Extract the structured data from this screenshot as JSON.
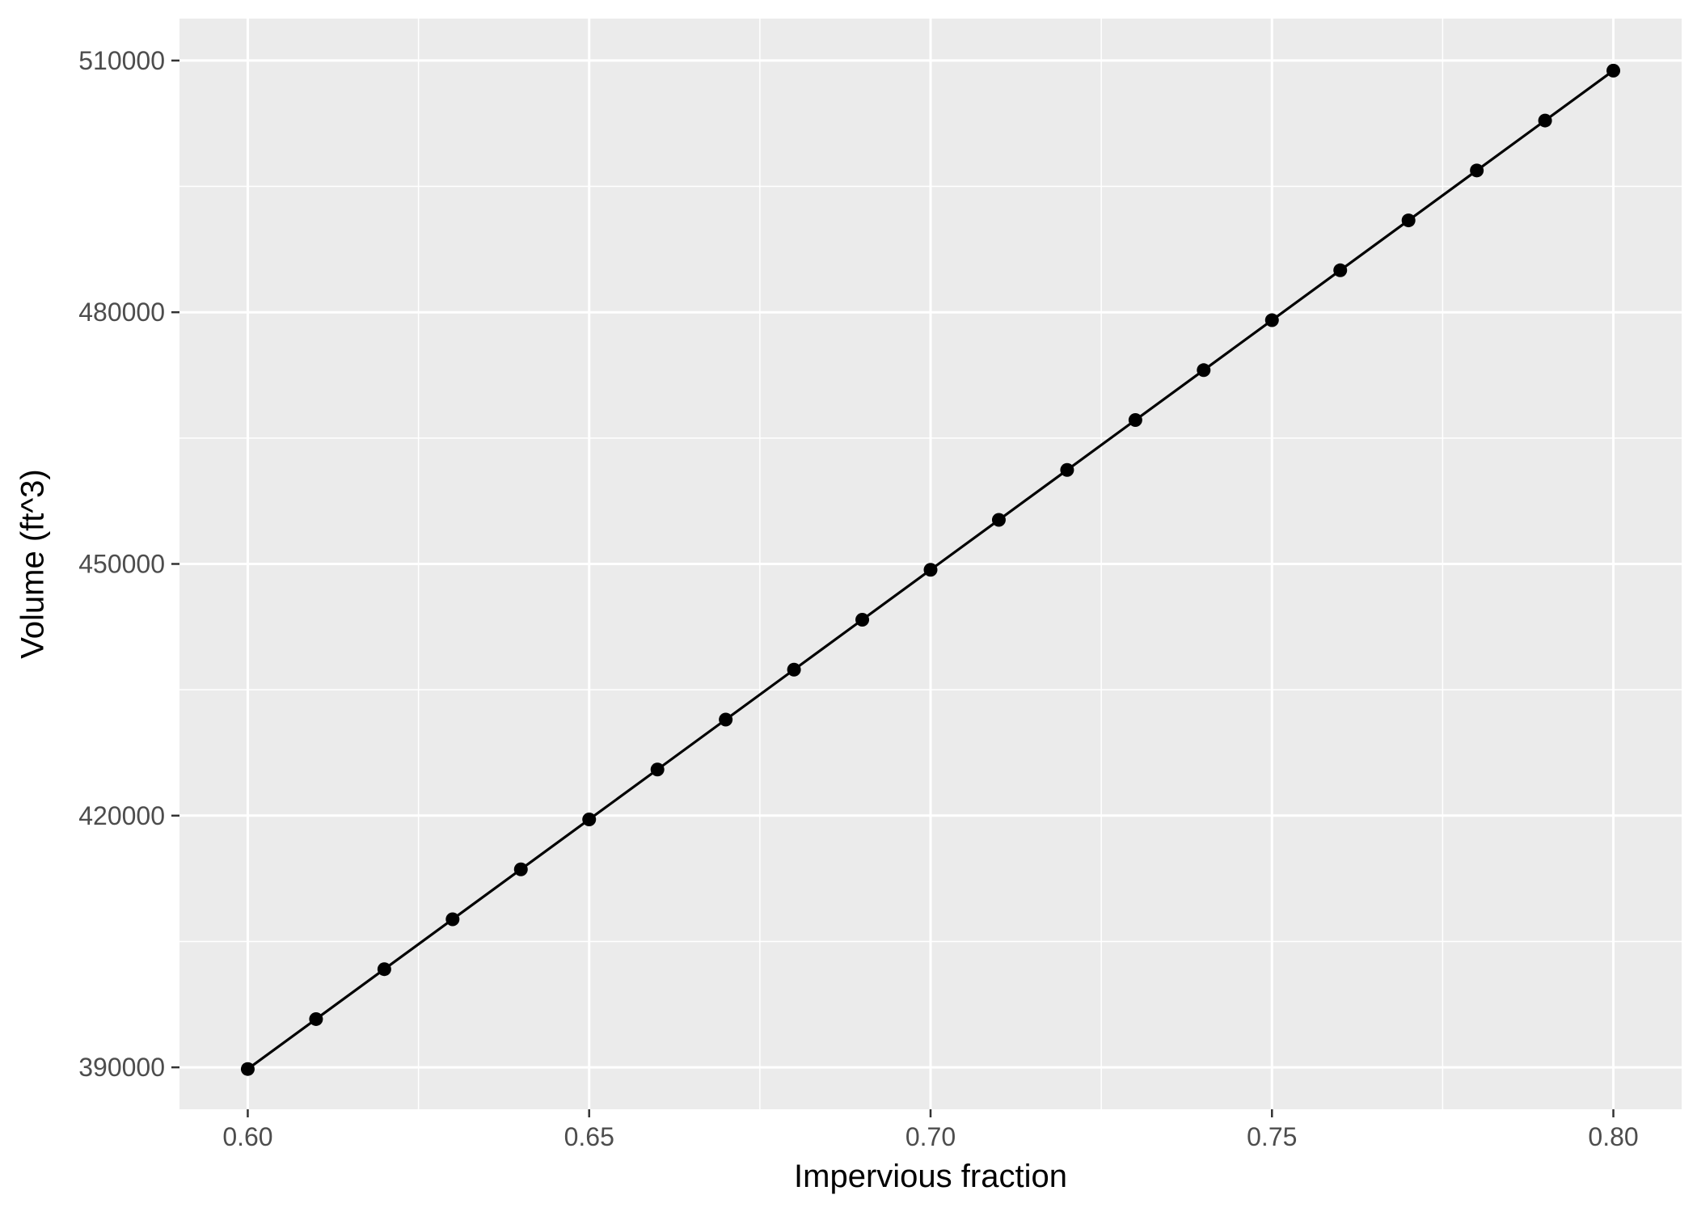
{
  "chart_data": {
    "type": "line",
    "title": "",
    "xlabel": "Impervious fraction",
    "ylabel": "Volume (ft^3)",
    "xlim": [
      0.59,
      0.81
    ],
    "ylim": [
      385000,
      515000
    ],
    "grid": true,
    "x_ticks": [
      0.6,
      0.65,
      0.7,
      0.75,
      0.8
    ],
    "x_tick_labels": [
      "0.60",
      "0.65",
      "0.70",
      "0.75",
      "0.80"
    ],
    "y_ticks": [
      390000,
      420000,
      450000,
      480000,
      510000
    ],
    "y_tick_labels": [
      "390000",
      "420000",
      "450000",
      "480000",
      "510000"
    ],
    "series": [
      {
        "x": [
          0.6,
          0.61,
          0.62,
          0.63,
          0.64,
          0.65,
          0.66,
          0.67,
          0.68,
          0.69,
          0.7,
          0.71,
          0.72,
          0.73,
          0.74,
          0.75,
          0.76,
          0.77,
          0.78,
          0.79,
          0.8
        ],
        "y": [
          389800,
          395750,
          401700,
          407650,
          413600,
          419550,
          425500,
          431450,
          437400,
          443350,
          449300,
          455250,
          461200,
          467150,
          473100,
          479050,
          485000,
          490950,
          496900,
          502850,
          508800
        ]
      }
    ],
    "colors": {
      "panel_background": "#ebebeb",
      "grid_line": "#ffffff",
      "series_line": "#000000",
      "tick_text": "#4d4d4d",
      "tick_mark": "#333333"
    }
  }
}
